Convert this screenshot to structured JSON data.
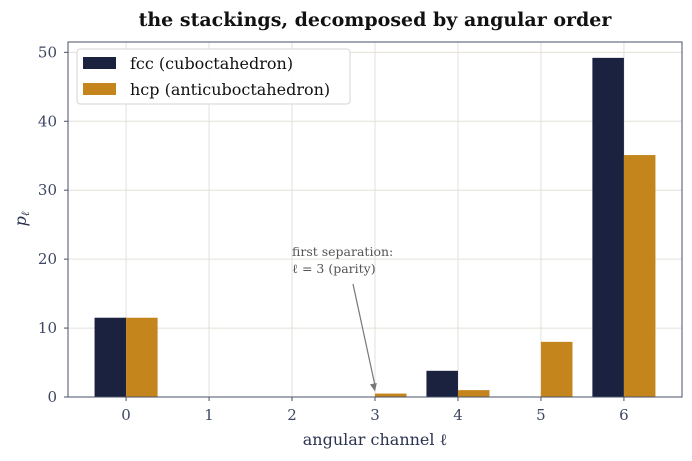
{
  "chart_data": {
    "type": "bar",
    "title": "the stackings, decomposed by angular order",
    "xlabel": "angular channel  ℓ",
    "ylabel": "p_ℓ",
    "categories": [
      "0",
      "1",
      "2",
      "3",
      "4",
      "5",
      "6"
    ],
    "series": [
      {
        "name": "fcc (cuboctahedron)",
        "values": [
          11.5,
          0,
          0,
          0,
          3.8,
          0,
          49.2
        ]
      },
      {
        "name": "hcp (anticuboctahedron)",
        "values": [
          11.5,
          0,
          0,
          0.5,
          1.0,
          8.0,
          35.1
        ]
      }
    ],
    "ylim": [
      0,
      51.5
    ],
    "xlim": [
      -0.7,
      6.7
    ],
    "yticks": [
      "0",
      "10",
      "20",
      "30",
      "40",
      "50"
    ],
    "grid": true,
    "legend": "top-left",
    "colors": {
      "fcc": "#1a2240",
      "hcp": "#c4861c",
      "grid": "#e3e0d8",
      "frame": "#4a5068"
    },
    "annotation": {
      "line1": "first separation:",
      "line2": "ℓ = 3 (parity)",
      "target_category": 3,
      "target_value": 0.5
    }
  }
}
